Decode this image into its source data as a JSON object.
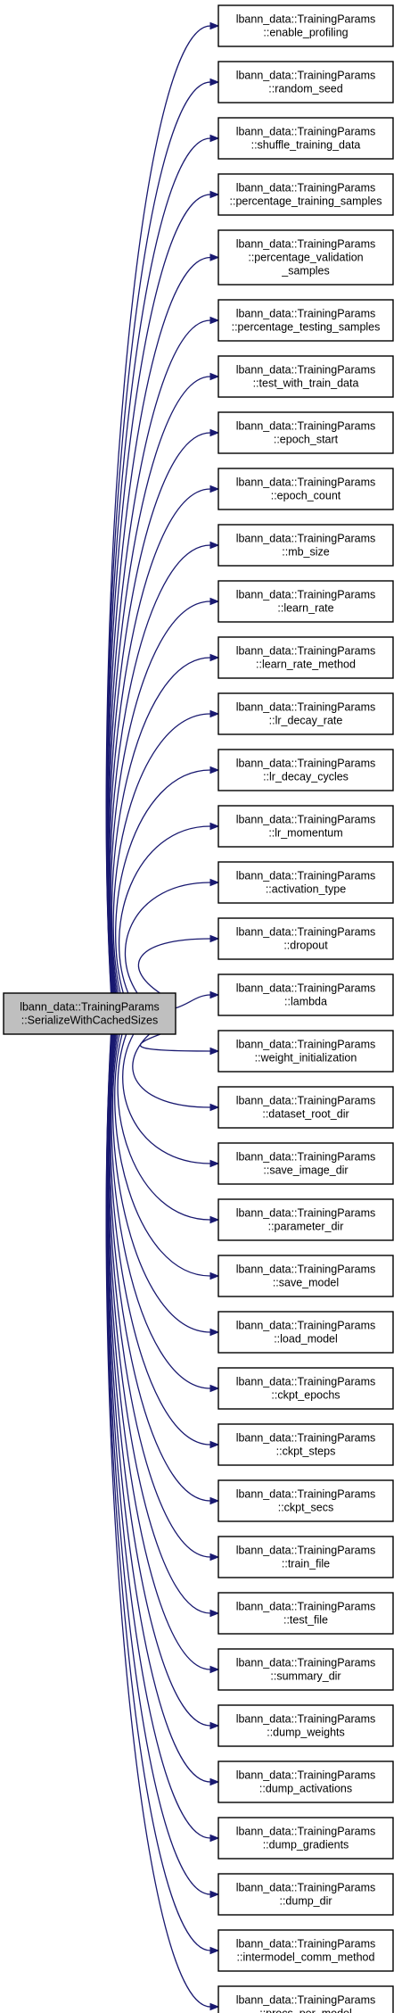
{
  "root": {
    "lines": [
      "lbann_data::TrainingParams",
      "::SerializeWithCachedSizes"
    ]
  },
  "callees": [
    {
      "lines": [
        "lbann_data::TrainingParams",
        "::enable_profiling"
      ]
    },
    {
      "lines": [
        "lbann_data::TrainingParams",
        "::random_seed"
      ]
    },
    {
      "lines": [
        "lbann_data::TrainingParams",
        "::shuffle_training_data"
      ]
    },
    {
      "lines": [
        "lbann_data::TrainingParams",
        "::percentage_training_samples"
      ]
    },
    {
      "lines": [
        "lbann_data::TrainingParams",
        "::percentage_validation",
        "_samples"
      ]
    },
    {
      "lines": [
        "lbann_data::TrainingParams",
        "::percentage_testing_samples"
      ]
    },
    {
      "lines": [
        "lbann_data::TrainingParams",
        "::test_with_train_data"
      ]
    },
    {
      "lines": [
        "lbann_data::TrainingParams",
        "::epoch_start"
      ]
    },
    {
      "lines": [
        "lbann_data::TrainingParams",
        "::epoch_count"
      ]
    },
    {
      "lines": [
        "lbann_data::TrainingParams",
        "::mb_size"
      ]
    },
    {
      "lines": [
        "lbann_data::TrainingParams",
        "::learn_rate"
      ]
    },
    {
      "lines": [
        "lbann_data::TrainingParams",
        "::learn_rate_method"
      ]
    },
    {
      "lines": [
        "lbann_data::TrainingParams",
        "::lr_decay_rate"
      ]
    },
    {
      "lines": [
        "lbann_data::TrainingParams",
        "::lr_decay_cycles"
      ]
    },
    {
      "lines": [
        "lbann_data::TrainingParams",
        "::lr_momentum"
      ]
    },
    {
      "lines": [
        "lbann_data::TrainingParams",
        "::activation_type"
      ]
    },
    {
      "lines": [
        "lbann_data::TrainingParams",
        "::dropout"
      ]
    },
    {
      "lines": [
        "lbann_data::TrainingParams",
        "::lambda"
      ]
    },
    {
      "lines": [
        "lbann_data::TrainingParams",
        "::weight_initialization"
      ]
    },
    {
      "lines": [
        "lbann_data::TrainingParams",
        "::dataset_root_dir"
      ]
    },
    {
      "lines": [
        "lbann_data::TrainingParams",
        "::save_image_dir"
      ]
    },
    {
      "lines": [
        "lbann_data::TrainingParams",
        "::parameter_dir"
      ]
    },
    {
      "lines": [
        "lbann_data::TrainingParams",
        "::save_model"
      ]
    },
    {
      "lines": [
        "lbann_data::TrainingParams",
        "::load_model"
      ]
    },
    {
      "lines": [
        "lbann_data::TrainingParams",
        "::ckpt_epochs"
      ]
    },
    {
      "lines": [
        "lbann_data::TrainingParams",
        "::ckpt_steps"
      ]
    },
    {
      "lines": [
        "lbann_data::TrainingParams",
        "::ckpt_secs"
      ]
    },
    {
      "lines": [
        "lbann_data::TrainingParams",
        "::train_file"
      ]
    },
    {
      "lines": [
        "lbann_data::TrainingParams",
        "::test_file"
      ]
    },
    {
      "lines": [
        "lbann_data::TrainingParams",
        "::summary_dir"
      ]
    },
    {
      "lines": [
        "lbann_data::TrainingParams",
        "::dump_weights"
      ]
    },
    {
      "lines": [
        "lbann_data::TrainingParams",
        "::dump_activations"
      ]
    },
    {
      "lines": [
        "lbann_data::TrainingParams",
        "::dump_gradients"
      ]
    },
    {
      "lines": [
        "lbann_data::TrainingParams",
        "::dump_dir"
      ]
    },
    {
      "lines": [
        "lbann_data::TrainingParams",
        "::intermodel_comm_method"
      ]
    },
    {
      "lines": [
        "lbann_data::TrainingParams",
        "::procs_per_model"
      ]
    }
  ],
  "colors": {
    "edge": "#191970",
    "root_fill": "#bfbfbf",
    "node_fill": "#ffffff",
    "border": "#000000"
  }
}
